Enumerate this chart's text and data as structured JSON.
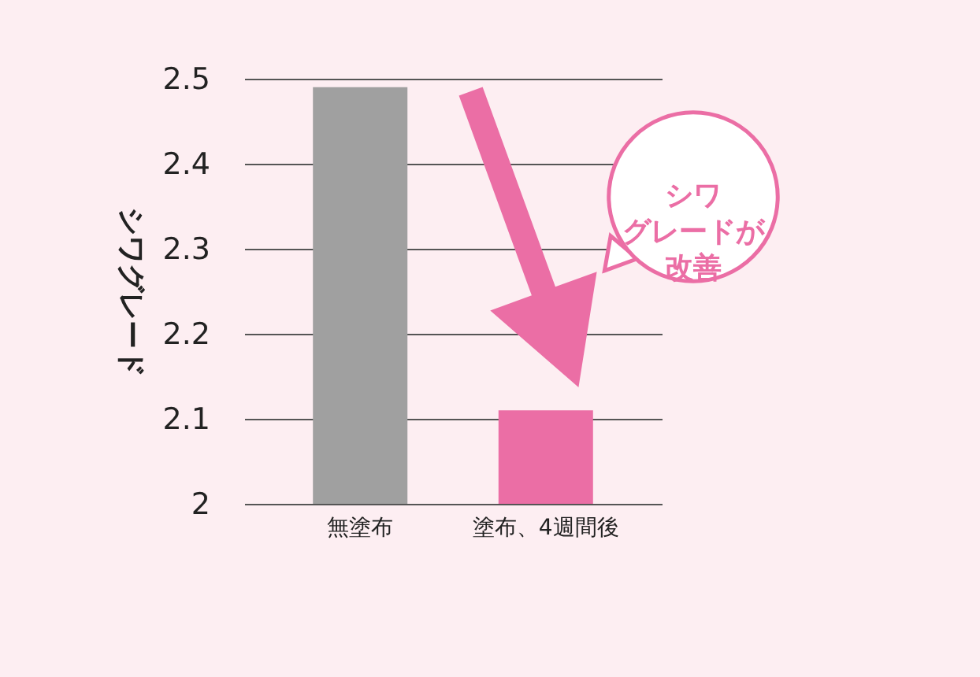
{
  "chart_data": {
    "type": "bar",
    "ylabel": "シワグレード",
    "categories": [
      "無塗布",
      "塗布、4週間後"
    ],
    "values": [
      2.49,
      2.11
    ],
    "colors": [
      "#a0a0a0",
      "#eb6ea5"
    ],
    "ylim": [
      2,
      2.5
    ],
    "yticks": [
      2,
      2.1,
      2.2,
      2.3,
      2.4,
      2.5
    ],
    "grid": "y",
    "annotations": [
      "シワグレードが改善"
    ]
  }
}
